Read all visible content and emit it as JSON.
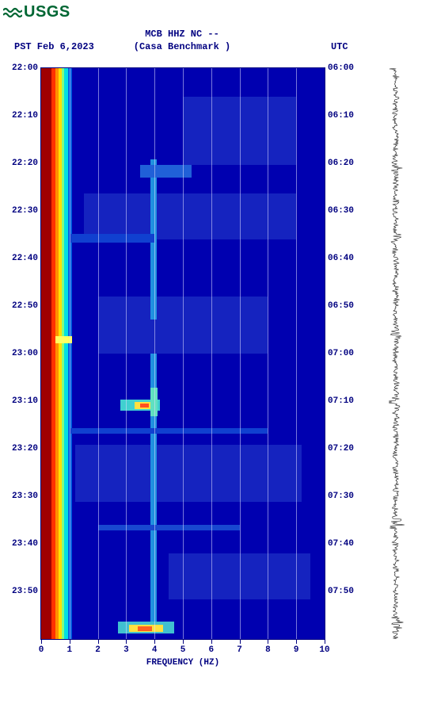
{
  "logo_text": "USGS",
  "title_line1": "MCB HHZ NC --",
  "title_line2": "(Casa Benchmark )",
  "pst_label": "PST  Feb 6,2023",
  "utc_label": "UTC",
  "x_axis_title": "FREQUENCY (HZ)",
  "colors": {
    "bg": "#ffffff",
    "text": "#000080",
    "logo": "#006633",
    "spec_base": "#0000b0",
    "grid": "rgba(220,220,255,0.55)"
  },
  "chart": {
    "x_min": 0,
    "x_max": 10,
    "x_ticks": [
      0,
      1,
      2,
      3,
      4,
      5,
      6,
      7,
      8,
      9,
      10
    ],
    "y_left_labels": [
      "22:00",
      "22:10",
      "22:20",
      "22:30",
      "22:40",
      "22:50",
      "23:00",
      "23:10",
      "23:20",
      "23:30",
      "23:40",
      "23:50"
    ],
    "y_right_labels": [
      "06:00",
      "06:10",
      "06:20",
      "06:30",
      "06:40",
      "06:50",
      "07:00",
      "07:10",
      "07:20",
      "07:30",
      "07:40",
      "07:50"
    ],
    "y_positions_pct": [
      0,
      8.33,
      16.67,
      25,
      33.33,
      41.67,
      50,
      58.33,
      66.67,
      75,
      83.33,
      91.67
    ]
  },
  "low_freq_band": {
    "columns": [
      {
        "left_pct": 0,
        "width_pct": 3.5,
        "color": "#a00000"
      },
      {
        "left_pct": 3.5,
        "width_pct": 1.5,
        "color": "#ff3000"
      },
      {
        "left_pct": 5,
        "width_pct": 1.2,
        "color": "#ff9000"
      },
      {
        "left_pct": 6.2,
        "width_pct": 1.0,
        "color": "#ffe000"
      },
      {
        "left_pct": 7.2,
        "width_pct": 1.0,
        "color": "#80ff80"
      },
      {
        "left_pct": 8.2,
        "width_pct": 1.2,
        "color": "#00e0e0"
      },
      {
        "left_pct": 9.4,
        "width_pct": 1.6,
        "color": "#0060e0"
      }
    ]
  },
  "features": [
    {
      "top_pct": 58,
      "height_pct": 2.0,
      "left_hz": 2.8,
      "width_hz": 1.4,
      "color": "#40d0d0"
    },
    {
      "top_pct": 58.5,
      "height_pct": 1.2,
      "left_hz": 3.3,
      "width_hz": 0.6,
      "color": "#ffe040"
    },
    {
      "top_pct": 58.7,
      "height_pct": 0.8,
      "left_hz": 3.5,
      "width_hz": 0.3,
      "color": "#ff5020"
    },
    {
      "top_pct": 16,
      "height_pct": 28,
      "left_hz": 3.85,
      "width_hz": 0.22,
      "color": "#2090e0"
    },
    {
      "top_pct": 50,
      "height_pct": 48,
      "left_hz": 3.85,
      "width_hz": 0.22,
      "color": "#2090e0"
    },
    {
      "top_pct": 56,
      "height_pct": 5,
      "left_hz": 3.85,
      "width_hz": 0.25,
      "color": "#60e0c0"
    },
    {
      "top_pct": 29,
      "height_pct": 1.5,
      "left_hz": 1.0,
      "width_hz": 3.0,
      "color": "#1040d0"
    },
    {
      "top_pct": 17,
      "height_pct": 2.2,
      "left_hz": 3.5,
      "width_hz": 1.8,
      "color": "#2060d8"
    },
    {
      "top_pct": 47,
      "height_pct": 1.2,
      "left_hz": 0.5,
      "width_hz": 0.6,
      "color": "#ffff60"
    },
    {
      "top_pct": 97,
      "height_pct": 2.0,
      "left_hz": 2.7,
      "width_hz": 2.0,
      "color": "#40c0d0"
    },
    {
      "top_pct": 97.5,
      "height_pct": 1.2,
      "left_hz": 3.1,
      "width_hz": 1.2,
      "color": "#ffe040"
    },
    {
      "top_pct": 97.8,
      "height_pct": 0.8,
      "left_hz": 3.4,
      "width_hz": 0.5,
      "color": "#ff6020"
    },
    {
      "top_pct": 80,
      "height_pct": 1.0,
      "left_hz": 2.0,
      "width_hz": 5.0,
      "color": "#1848d0"
    },
    {
      "top_pct": 63,
      "height_pct": 1.0,
      "left_hz": 1.0,
      "width_hz": 7.0,
      "color": "#1040d0"
    }
  ],
  "noise_patches": [
    {
      "top_pct": 5,
      "left_hz": 5.0,
      "w_hz": 4.0,
      "h_pct": 12
    },
    {
      "top_pct": 22,
      "left_hz": 1.5,
      "w_hz": 7.5,
      "h_pct": 8
    },
    {
      "top_pct": 40,
      "left_hz": 2.0,
      "w_hz": 6.0,
      "h_pct": 10
    },
    {
      "top_pct": 66,
      "left_hz": 1.2,
      "w_hz": 8.0,
      "h_pct": 10
    },
    {
      "top_pct": 85,
      "left_hz": 4.5,
      "w_hz": 5.0,
      "h_pct": 8
    }
  ]
}
